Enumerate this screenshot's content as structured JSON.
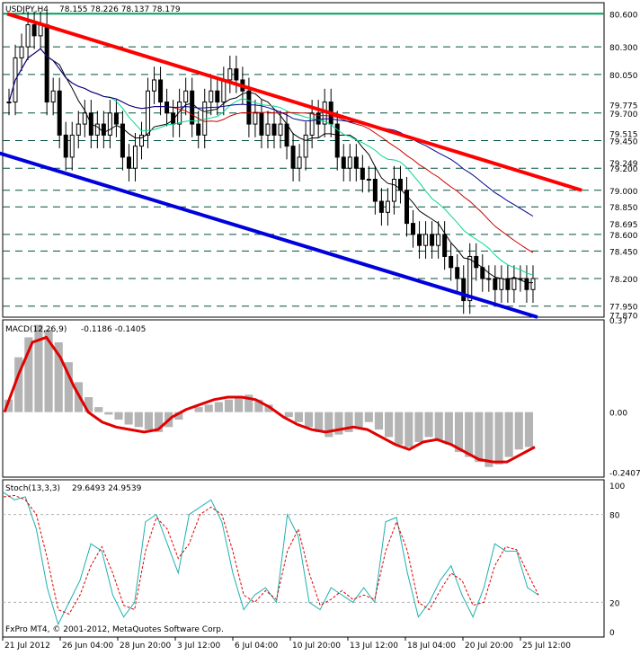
{
  "header": {
    "symbol": "USDJPY,H4",
    "quote": "78.155 78.226 78.137 78.179"
  },
  "colors": {
    "background": "#ffffff",
    "frame": "#000000",
    "up_candle": "#000000",
    "down_candle": "#000000",
    "ma_black": "#000000",
    "ma_red": "#c80000",
    "ma_green": "#00d890",
    "ma_blue": "#000090",
    "upper_trend": "#ff0000",
    "lower_trend": "#0000dd",
    "level_green": "#00a060",
    "level_dashed": "#005040",
    "macd_hist": "#b4b4b4",
    "macd_signal": "#e00000",
    "stoch_main": "#20b0b0",
    "stoch_signal": "#e00000"
  },
  "chart_data": [
    {
      "type": "candlestick",
      "title": "USDJPY,H4",
      "ylim": [
        77.85,
        80.7
      ],
      "levels": [
        {
          "label": "80.600",
          "value": 80.6,
          "solid": true
        },
        {
          "label": "80.300",
          "value": 80.3
        },
        {
          "label": "80.050",
          "value": 80.05
        },
        {
          "label": "79.700",
          "value": 79.7
        },
        {
          "label": "79.450",
          "value": 79.45
        },
        {
          "label": "79.200",
          "value": 79.2
        },
        {
          "label": "79.000",
          "value": 79.0
        },
        {
          "label": "78.850",
          "value": 78.85
        },
        {
          "label": "78.600",
          "value": 78.6
        },
        {
          "label": "78.450",
          "value": 78.45
        },
        {
          "label": "78.200",
          "value": 78.2
        },
        {
          "label": "77.950",
          "value": 77.95
        }
      ],
      "price_ticks": [
        "79.775",
        "79.515",
        "79.249",
        "78.695",
        "77.870"
      ],
      "trendlines": [
        {
          "name": "upper",
          "from": [
            0,
            80.6
          ],
          "to": [
            130,
            79.0
          ]
        },
        {
          "name": "lower",
          "from": [
            -7,
            79.4
          ],
          "to": [
            120,
            77.85
          ]
        }
      ],
      "closes": [
        79.8,
        80.2,
        80.3,
        80.5,
        80.4,
        80.5,
        79.8,
        79.9,
        79.5,
        79.3,
        79.5,
        79.6,
        79.7,
        79.5,
        79.6,
        79.5,
        79.7,
        79.6,
        79.3,
        79.2,
        79.4,
        79.5,
        79.9,
        80.0,
        79.8,
        79.7,
        79.6,
        79.8,
        79.9,
        79.6,
        79.5,
        79.8,
        79.9,
        79.8,
        80.0,
        80.1,
        80.0,
        79.9,
        79.6,
        79.7,
        79.5,
        79.6,
        79.5,
        79.6,
        79.4,
        79.2,
        79.3,
        79.5,
        79.7,
        79.6,
        79.8,
        79.6,
        79.3,
        79.2,
        79.3,
        79.2,
        79.1,
        79.1,
        78.9,
        78.8,
        78.9,
        79.1,
        79.0,
        78.7,
        78.6,
        78.5,
        78.6,
        78.5,
        78.6,
        78.4,
        78.3,
        78.2,
        78.0,
        78.4,
        78.3,
        78.2,
        78.2,
        78.1,
        78.2,
        78.1,
        78.2,
        78.2,
        78.1,
        78.2
      ]
    },
    {
      "type": "histogram",
      "title": "MACD(12,26,9)",
      "values_text": "-0.1186 -0.1405",
      "ylim": [
        -0.2607,
        0.37
      ],
      "ticks": [
        {
          "label": "0.37",
          "value": 0.37
        },
        {
          "label": "0.00",
          "value": 0.0
        },
        {
          "label": "-0.2407",
          "value": -0.2407
        }
      ],
      "histogram": [
        0.05,
        0.22,
        0.3,
        0.35,
        0.33,
        0.28,
        0.2,
        0.12,
        0.06,
        0.02,
        -0.01,
        -0.03,
        -0.05,
        -0.06,
        -0.07,
        -0.08,
        -0.06,
        -0.03,
        0.0,
        0.02,
        0.03,
        0.04,
        0.05,
        0.06,
        0.07,
        0.05,
        0.03,
        0.0,
        -0.02,
        -0.04,
        -0.06,
        -0.08,
        -0.1,
        -0.09,
        -0.08,
        -0.06,
        -0.04,
        -0.07,
        -0.1,
        -0.13,
        -0.14,
        -0.12,
        -0.1,
        -0.11,
        -0.13,
        -0.16,
        -0.18,
        -0.2,
        -0.22,
        -0.21,
        -0.18,
        -0.15,
        -0.14
      ],
      "signal": [
        0.0,
        0.15,
        0.28,
        0.3,
        0.22,
        0.1,
        0.0,
        -0.04,
        -0.06,
        -0.07,
        -0.08,
        -0.07,
        -0.02,
        0.01,
        0.03,
        0.05,
        0.06,
        0.06,
        0.05,
        0.02,
        -0.02,
        -0.05,
        -0.07,
        -0.08,
        -0.07,
        -0.06,
        -0.07,
        -0.1,
        -0.13,
        -0.15,
        -0.12,
        -0.11,
        -0.13,
        -0.16,
        -0.19,
        -0.2,
        -0.2,
        -0.17,
        -0.14
      ]
    },
    {
      "type": "line",
      "title": "Stoch(13,3,3)",
      "values_text": "29.6493 24.9539",
      "ylim": [
        0,
        100
      ],
      "ticks": [
        {
          "label": "100",
          "value": 100
        },
        {
          "label": "80",
          "value": 80
        },
        {
          "label": "20",
          "value": 20
        },
        {
          "label": "0",
          "value": 0
        }
      ],
      "main": [
        95,
        90,
        92,
        70,
        30,
        5,
        20,
        35,
        60,
        55,
        25,
        10,
        20,
        75,
        80,
        60,
        40,
        80,
        85,
        90,
        75,
        40,
        15,
        25,
        30,
        20,
        80,
        65,
        20,
        15,
        30,
        25,
        20,
        30,
        20,
        75,
        78,
        40,
        10,
        20,
        35,
        45,
        25,
        10,
        30,
        60,
        55,
        55,
        30,
        25
      ],
      "signal": [
        92,
        93,
        90,
        80,
        50,
        15,
        12,
        25,
        45,
        58,
        40,
        18,
        15,
        55,
        78,
        70,
        50,
        60,
        80,
        85,
        80,
        55,
        25,
        20,
        28,
        22,
        55,
        70,
        40,
        18,
        22,
        28,
        22,
        25,
        22,
        55,
        75,
        55,
        20,
        15,
        28,
        40,
        35,
        18,
        20,
        45,
        58,
        56,
        40,
        25
      ]
    }
  ],
  "time_axis": [
    "21 Jul 2012",
    "26 Jun 04:00",
    "28 Jun 20:00",
    "3 Jul 12:00",
    "6 Jul 04:00",
    "10 Jul 20:00",
    "13 Jul 12:00",
    "18 Jul 04:00",
    "20 Jul 20:00",
    "25 Jul 12:00"
  ],
  "footer": "FxPro MT4, © 2001-2012, MetaQuotes Software Corp."
}
